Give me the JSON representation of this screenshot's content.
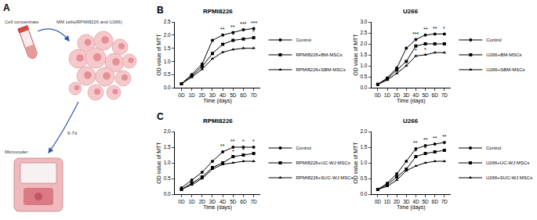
{
  "panel_labels": [
    "A",
    "B",
    "C"
  ],
  "diagram": {
    "tube_label": "Cell concentrate",
    "cells_label": "MM cells(RPMI8226 and U266)",
    "arrow_label": "6-7d",
    "device_label": "Microcoder"
  },
  "chart_data": [
    {
      "type": "line",
      "title": "RPMI8226",
      "xlabel": "Time (days)",
      "ylabel": "OD value of MTT",
      "categories": [
        "0D",
        "1D",
        "2D",
        "3D",
        "4D",
        "5D",
        "6D",
        "7D"
      ],
      "series": [
        {
          "name": "Control",
          "color": "#000000",
          "marker": "circle",
          "values": [
            0.15,
            0.5,
            0.9,
            1.8,
            2.0,
            2.1,
            2.2,
            2.25
          ]
        },
        {
          "name": "RPMI8226+BM-MSCs",
          "color": "#000000",
          "marker": "square",
          "values": [
            0.15,
            0.45,
            0.8,
            1.3,
            1.65,
            1.8,
            1.85,
            1.9
          ]
        },
        {
          "name": "RPMI8226+SBM-MSCs",
          "color": "#000000",
          "marker": "triangle",
          "values": [
            0.15,
            0.4,
            0.7,
            1.1,
            1.35,
            1.45,
            1.5,
            1.5
          ]
        }
      ],
      "ylim": [
        0,
        2.5
      ],
      "yticks": [
        {
          "value": 0,
          "label": "0.0"
        },
        0.5,
        {
          "value": 1,
          "label": "1.0"
        },
        1.5,
        {
          "value": 2,
          "label": "2.0"
        },
        2.5
      ],
      "grid": false,
      "legend": "right",
      "annotations": [
        {
          "x": "4D",
          "y": 2.05,
          "text": "**"
        },
        {
          "x": "5D",
          "y": 2.15,
          "text": "**"
        },
        {
          "x": "6D",
          "y": 2.25,
          "text": "***"
        },
        {
          "x": "7D",
          "y": 2.3,
          "text": "***"
        },
        {
          "x": "5D",
          "y": 1.85,
          "text": "*"
        },
        {
          "x": "7D",
          "y": 1.95,
          "text": "*"
        }
      ]
    },
    {
      "type": "line",
      "title": "U266",
      "xlabel": "Time (days)",
      "ylabel": "OD value of MTT",
      "categories": [
        "0D",
        "1D",
        "2D",
        "3D",
        "4D",
        "5D",
        "6D",
        "7D"
      ],
      "series": [
        {
          "name": "Control",
          "color": "#000000",
          "marker": "circle",
          "values": [
            0.15,
            0.45,
            0.9,
            1.8,
            2.2,
            2.4,
            2.45,
            2.45
          ]
        },
        {
          "name": "U266+BM-MSCs",
          "color": "#000000",
          "marker": "square",
          "values": [
            0.15,
            0.4,
            0.8,
            1.2,
            1.9,
            2.0,
            2.0,
            2.0
          ]
        },
        {
          "name": "U266+SBM-MSCs",
          "color": "#000000",
          "marker": "triangle",
          "values": [
            0.15,
            0.35,
            0.65,
            1.0,
            1.45,
            1.5,
            1.6,
            1.6
          ]
        }
      ],
      "ylim": [
        0,
        3
      ],
      "yticks": [
        {
          "value": 0,
          "label": "0.0"
        },
        0.5,
        {
          "value": 1,
          "label": "1.0"
        },
        1.5,
        {
          "value": 2,
          "label": "2.0"
        },
        2.5,
        {
          "value": 3,
          "label": "3.0"
        }
      ],
      "grid": false,
      "legend": "right",
      "annotations": [
        {
          "x": "4D",
          "y": 2.25,
          "text": "***"
        },
        {
          "x": "5D",
          "y": 2.45,
          "text": "**"
        },
        {
          "x": "6D",
          "y": 2.5,
          "text": "**"
        },
        {
          "x": "7D",
          "y": 2.5,
          "text": "*"
        },
        {
          "x": "4D",
          "y": 1.5,
          "text": "*"
        },
        {
          "x": "5D",
          "y": 1.55,
          "text": "*"
        }
      ]
    },
    {
      "type": "line",
      "title": "RPMI8226",
      "xlabel": "Time (days)",
      "ylabel": "OD value of MTT",
      "categories": [
        "0D",
        "1D",
        "2D",
        "3D",
        "4D",
        "5D",
        "6D",
        "7D"
      ],
      "series": [
        {
          "name": "Control",
          "color": "#000000",
          "marker": "circle",
          "values": [
            0.2,
            0.45,
            0.7,
            1.05,
            1.35,
            1.5,
            1.5,
            1.5
          ]
        },
        {
          "name": "RPMI8226+UC-WJ MSCs",
          "color": "#000000",
          "marker": "square",
          "values": [
            0.15,
            0.35,
            0.55,
            0.85,
            1.0,
            1.2,
            1.25,
            1.3
          ]
        },
        {
          "name": "RPMI8226+SUC-WJ MSCs",
          "color": "#000000",
          "marker": "triangle",
          "values": [
            0.15,
            0.3,
            0.5,
            0.8,
            0.95,
            1.0,
            1.05,
            1.05
          ]
        }
      ],
      "ylim": [
        0,
        2
      ],
      "yticks": [
        {
          "value": 0,
          "label": "0.0"
        },
        0.5,
        {
          "value": 1,
          "label": "1.0"
        },
        1.5,
        {
          "value": 2,
          "label": "2.0"
        }
      ],
      "grid": false,
      "legend": "right",
      "annotations": [
        {
          "x": "4D",
          "y": 1.4,
          "text": "**"
        },
        {
          "x": "5D",
          "y": 1.55,
          "text": "**"
        },
        {
          "x": "6D",
          "y": 1.55,
          "text": "*"
        },
        {
          "x": "7D",
          "y": 1.55,
          "text": "*"
        },
        {
          "x": "5D",
          "y": 1.22,
          "text": "*"
        },
        {
          "x": "6D",
          "y": 1.27,
          "text": "*"
        }
      ]
    },
    {
      "type": "line",
      "title": "U266",
      "xlabel": "Time (days)",
      "ylabel": "OD value of MTT",
      "categories": [
        "0D",
        "1D",
        "2D",
        "3D",
        "4D",
        "5D",
        "6D",
        "7D"
      ],
      "series": [
        {
          "name": "Control",
          "color": "#000000",
          "marker": "circle",
          "values": [
            0.15,
            0.35,
            0.65,
            1.05,
            1.45,
            1.55,
            1.6,
            1.65
          ]
        },
        {
          "name": "U266+UC-WJ MSCs",
          "color": "#000000",
          "marker": "square",
          "values": [
            0.15,
            0.3,
            0.55,
            0.8,
            1.2,
            1.3,
            1.35,
            1.4
          ]
        },
        {
          "name": "U266+SUC-WJ MSCs",
          "color": "#000000",
          "marker": "triangle",
          "values": [
            0.15,
            0.25,
            0.45,
            0.75,
            0.9,
            1.0,
            1.05,
            1.05
          ]
        }
      ],
      "ylim": [
        0,
        2
      ],
      "yticks": [
        {
          "value": 0,
          "label": "0.0"
        },
        0.5,
        {
          "value": 1,
          "label": "1.0"
        },
        1.5,
        {
          "value": 2,
          "label": "2.0"
        }
      ],
      "grid": false,
      "legend": "right",
      "annotations": [
        {
          "x": "4D",
          "y": 1.5,
          "text": "**"
        },
        {
          "x": "5D",
          "y": 1.6,
          "text": "**"
        },
        {
          "x": "6D",
          "y": 1.65,
          "text": "**"
        },
        {
          "x": "7D",
          "y": 1.7,
          "text": "**"
        },
        {
          "x": "4D",
          "y": 1.22,
          "text": "*"
        },
        {
          "x": "5D",
          "y": 1.32,
          "text": "*"
        }
      ]
    }
  ]
}
